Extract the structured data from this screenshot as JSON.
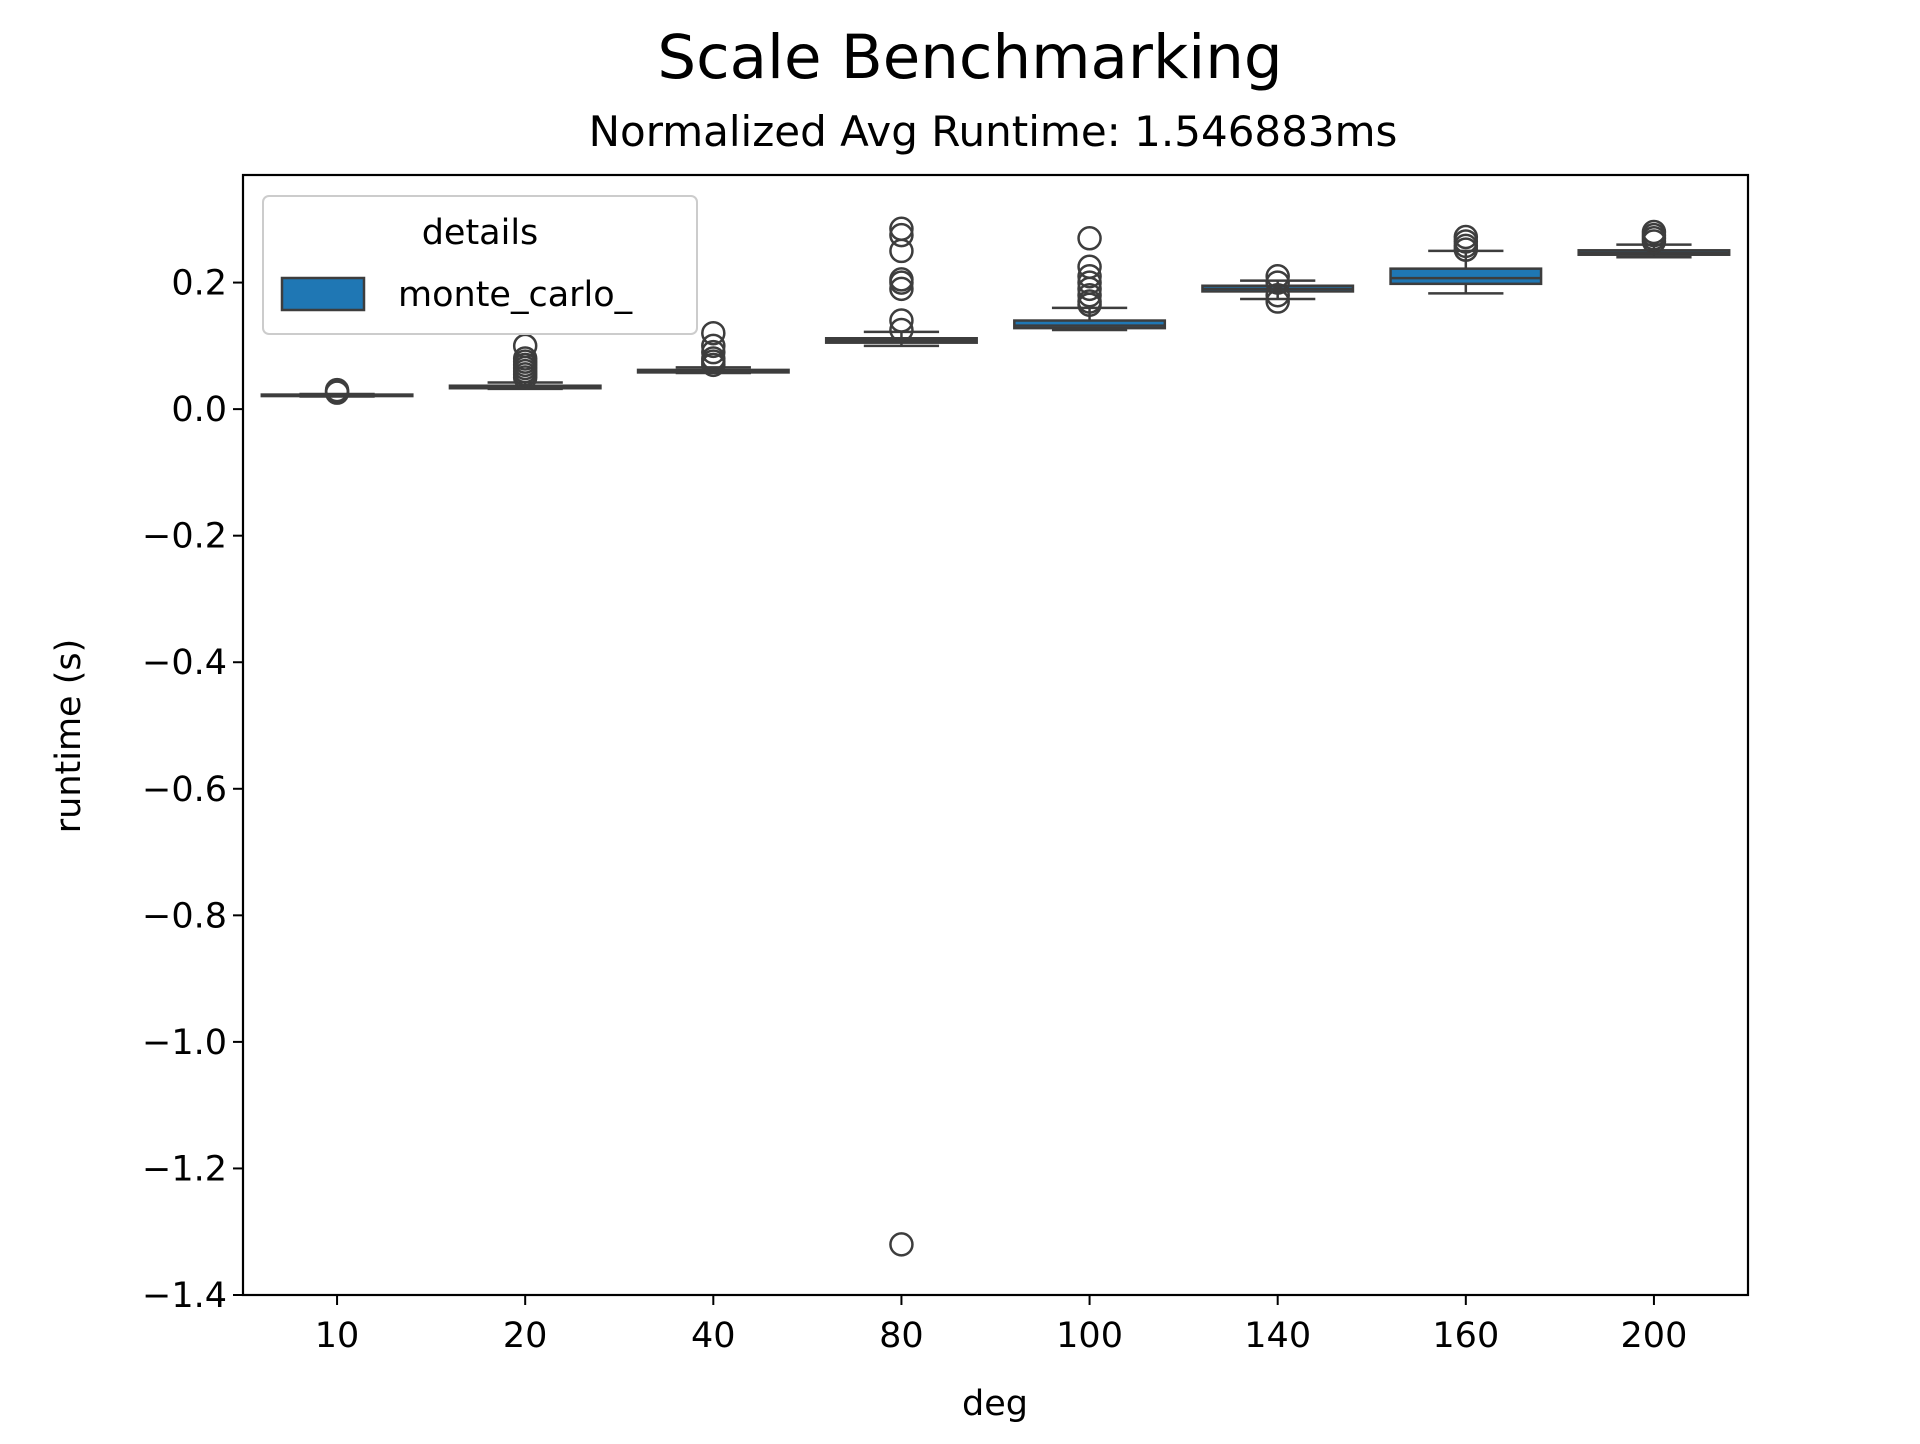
{
  "chart_data": {
    "type": "box",
    "title": "Scale Benchmarking",
    "subtitle": "Normalized Avg Runtime: 1.546883ms",
    "xlabel": "deg",
    "ylabel": "runtime (s)",
    "categories": [
      "10",
      "20",
      "40",
      "80",
      "100",
      "140",
      "160",
      "200"
    ],
    "ylim": [
      -1.4,
      0.37
    ],
    "yticks": [
      0.2,
      0.0,
      -0.2,
      -0.4,
      -0.6,
      -0.8,
      -1.0,
      -1.2,
      -1.4
    ],
    "ytick_labels": [
      "0.2",
      "0.0",
      "−0.2",
      "−0.4",
      "−0.6",
      "−0.8",
      "−1.0",
      "−1.2",
      "−1.4"
    ],
    "grid": false,
    "legend": {
      "title": "details",
      "placement": "top-left",
      "entries": [
        "monte_carlo_"
      ]
    },
    "colors": {
      "box_fill": "#1f77b4",
      "box_edge": "#3d3d3d",
      "axes": "#000000",
      "legend_border": "#cccccc"
    },
    "series": [
      {
        "name": "monte_carlo_",
        "boxes": [
          {
            "category": "10",
            "whislo": 0.02,
            "q1": 0.021,
            "med": 0.022,
            "q3": 0.023,
            "whishi": 0.024,
            "fliers": [
              0.026,
              0.028,
              0.03
            ]
          },
          {
            "category": "20",
            "whislo": 0.032,
            "q1": 0.033,
            "med": 0.035,
            "q3": 0.037,
            "whishi": 0.042,
            "fliers": [
              0.05,
              0.055,
              0.06,
              0.065,
              0.07,
              0.075,
              0.08,
              0.1
            ]
          },
          {
            "category": "40",
            "whislo": 0.057,
            "q1": 0.058,
            "med": 0.06,
            "q3": 0.062,
            "whishi": 0.066,
            "fliers": [
              0.07,
              0.075,
              0.08,
              0.09,
              0.1,
              0.12
            ]
          },
          {
            "category": "80",
            "whislo": 0.1,
            "q1": 0.105,
            "med": 0.108,
            "q3": 0.112,
            "whishi": 0.122,
            "fliers": [
              0.125,
              0.14,
              0.19,
              0.2,
              0.205,
              0.25,
              0.275,
              0.285,
              -1.32
            ]
          },
          {
            "category": "100",
            "whislo": 0.125,
            "q1": 0.128,
            "med": 0.132,
            "q3": 0.14,
            "whishi": 0.16,
            "fliers": [
              0.165,
              0.17,
              0.18,
              0.19,
              0.2,
              0.21,
              0.225,
              0.27
            ]
          },
          {
            "category": "140",
            "whislo": 0.174,
            "q1": 0.186,
            "med": 0.19,
            "q3": 0.195,
            "whishi": 0.203,
            "fliers": [
              0.17,
              0.18,
              0.2,
              0.21
            ]
          },
          {
            "category": "160",
            "whislo": 0.183,
            "q1": 0.198,
            "med": 0.207,
            "q3": 0.222,
            "whishi": 0.25,
            "fliers": [
              0.252,
              0.258,
              0.265,
              0.272
            ]
          },
          {
            "category": "200",
            "whislo": 0.24,
            "q1": 0.244,
            "med": 0.247,
            "q3": 0.251,
            "whishi": 0.26,
            "fliers": [
              0.265,
              0.27,
              0.275,
              0.28
            ]
          }
        ]
      }
    ]
  }
}
